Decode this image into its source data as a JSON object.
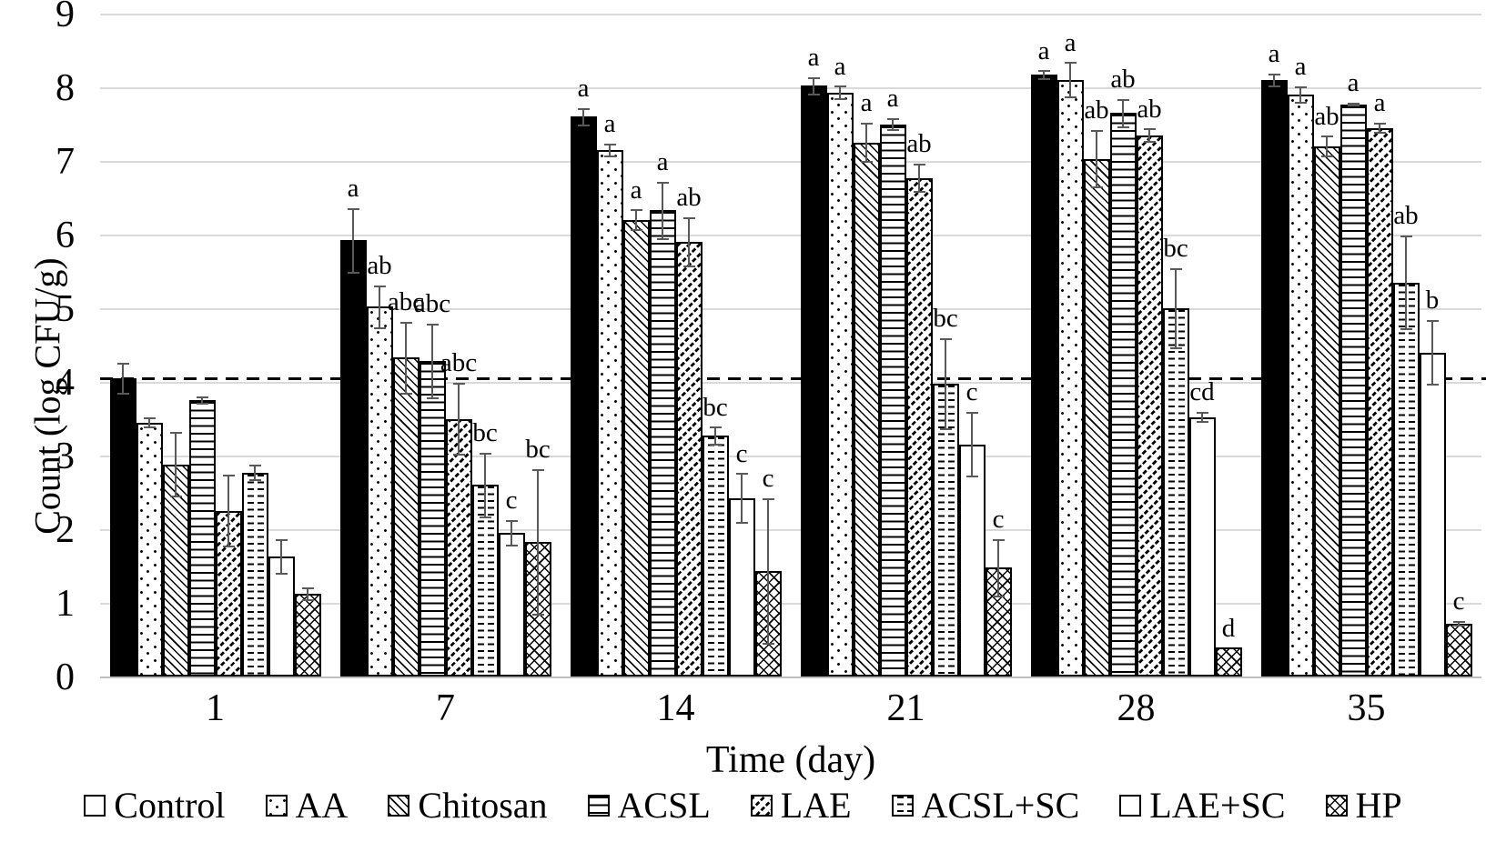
{
  "figure": {
    "y_axis_title": "Count (log CFU/g)",
    "x_axis_title": "Time (day)",
    "y_ticks": [
      "0",
      "1",
      "2",
      "3",
      "4",
      "5",
      "6",
      "7",
      "8",
      "9"
    ]
  },
  "chart_data": {
    "type": "bar",
    "title": "",
    "xlabel": "Time (day)",
    "ylabel": "Count (log CFU/g)",
    "ylim": [
      0,
      9
    ],
    "grid": true,
    "legend_position": "bottom",
    "dashed_reference_line_y": 4.05,
    "categories": [
      "1",
      "7",
      "14",
      "21",
      "28",
      "35"
    ],
    "series": [
      {
        "name": "Control",
        "pattern": "solid",
        "values": [
          4.05,
          5.92,
          7.6,
          8.02,
          8.17,
          8.1
        ],
        "errors": [
          0.22,
          0.45,
          0.13,
          0.13,
          0.07,
          0.1
        ],
        "letters": [
          "",
          "a",
          "a",
          "a",
          "a",
          "a"
        ]
      },
      {
        "name": "AA",
        "pattern": "dots",
        "values": [
          3.45,
          5.02,
          7.15,
          7.93,
          8.1,
          7.9
        ],
        "errors": [
          0.08,
          0.3,
          0.1,
          0.1,
          0.25,
          0.12
        ],
        "letters": [
          "",
          "ab",
          "a",
          "a",
          "a",
          "a"
        ]
      },
      {
        "name": "Chitosan",
        "pattern": "diag-down",
        "values": [
          2.88,
          4.33,
          6.2,
          7.25,
          7.03,
          7.2
        ],
        "errors": [
          0.45,
          0.5,
          0.15,
          0.28,
          0.4,
          0.15
        ],
        "letters": [
          "",
          "abc",
          "a",
          "a",
          "ab",
          "ab"
        ]
      },
      {
        "name": "ACSL",
        "pattern": "hlines",
        "values": [
          3.75,
          4.28,
          6.33,
          7.5,
          7.65,
          7.77
        ],
        "errors": [
          0.06,
          0.52,
          0.4,
          0.09,
          0.2,
          0.03
        ],
        "letters": [
          "",
          "abc",
          "a",
          "a",
          "ab",
          "a"
        ]
      },
      {
        "name": "LAE",
        "pattern": "diag-up-dash",
        "values": [
          2.25,
          3.5,
          5.9,
          6.77,
          7.35,
          7.45
        ],
        "errors": [
          0.5,
          0.5,
          0.35,
          0.2,
          0.1,
          0.08
        ],
        "letters": [
          "",
          "abc",
          "ab",
          "ab",
          "ab",
          "a"
        ]
      },
      {
        "name": "ACSL+SC",
        "pattern": "hdash",
        "values": [
          2.77,
          2.6,
          3.27,
          3.97,
          5.0,
          5.35
        ],
        "errors": [
          0.12,
          0.45,
          0.13,
          0.63,
          0.55,
          0.65
        ],
        "letters": [
          "",
          "bc",
          "bc",
          "bc",
          "bc",
          "ab"
        ]
      },
      {
        "name": "LAE+SC",
        "pattern": "plain",
        "values": [
          1.63,
          1.95,
          2.42,
          3.15,
          3.52,
          4.4
        ],
        "errors": [
          0.25,
          0.18,
          0.35,
          0.45,
          0.08,
          0.45
        ],
        "letters": [
          "",
          "c",
          "c",
          "c",
          "cd",
          "b"
        ]
      },
      {
        "name": "HP",
        "pattern": "lattice",
        "values": [
          1.12,
          1.83,
          1.43,
          1.48,
          0.4,
          0.72
        ],
        "errors": [
          0.1,
          1.0,
          1.0,
          0.4,
          0.0,
          0.04
        ],
        "letters": [
          "",
          "bc",
          "c",
          "c",
          "d",
          "c"
        ]
      }
    ]
  }
}
